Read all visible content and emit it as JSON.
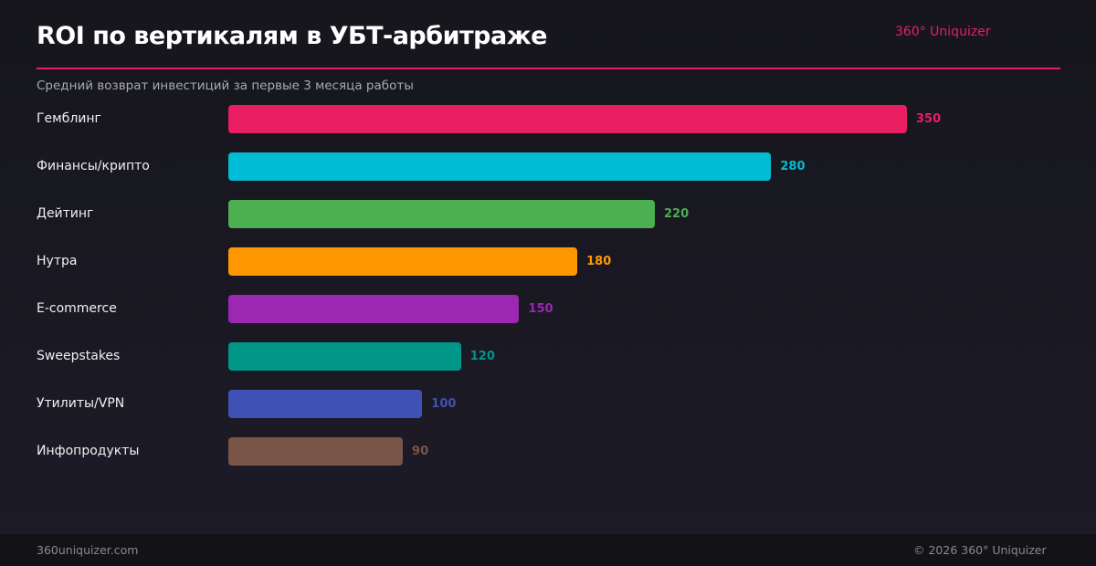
{
  "header": {
    "title": "ROI по вертикалям в УБТ-арбитраже",
    "brand": "360° Uniquizer",
    "subtitle": "Средний возврат инвестиций за первые 3 месяца работы",
    "accent": "#e91e63"
  },
  "chart_data": {
    "type": "bar",
    "orientation": "horizontal",
    "grid": false,
    "legend": "none",
    "title": "ROI по вертикалям в УБТ-арбитраже",
    "subtitle": "Средний возврат инвестиций за первые 3 месяца работы",
    "xlim": [
      0,
      350
    ],
    "categories": [
      "Гемблинг",
      "Финансы/крипто",
      "Дейтинг",
      "Нутра",
      "E-commerce",
      "Sweepstakes",
      "Утилиты/VPN",
      "Инфопродукты"
    ],
    "values": [
      350,
      280,
      220,
      180,
      150,
      120,
      100,
      90
    ],
    "colors": [
      "#e91e63",
      "#00bcd4",
      "#4caf50",
      "#ff9800",
      "#9c27b0",
      "#009688",
      "#3f51b5",
      "#795548"
    ]
  },
  "footer": {
    "site": "360uniquizer.com",
    "copyright": "© 2026 360° Uniquizer"
  }
}
